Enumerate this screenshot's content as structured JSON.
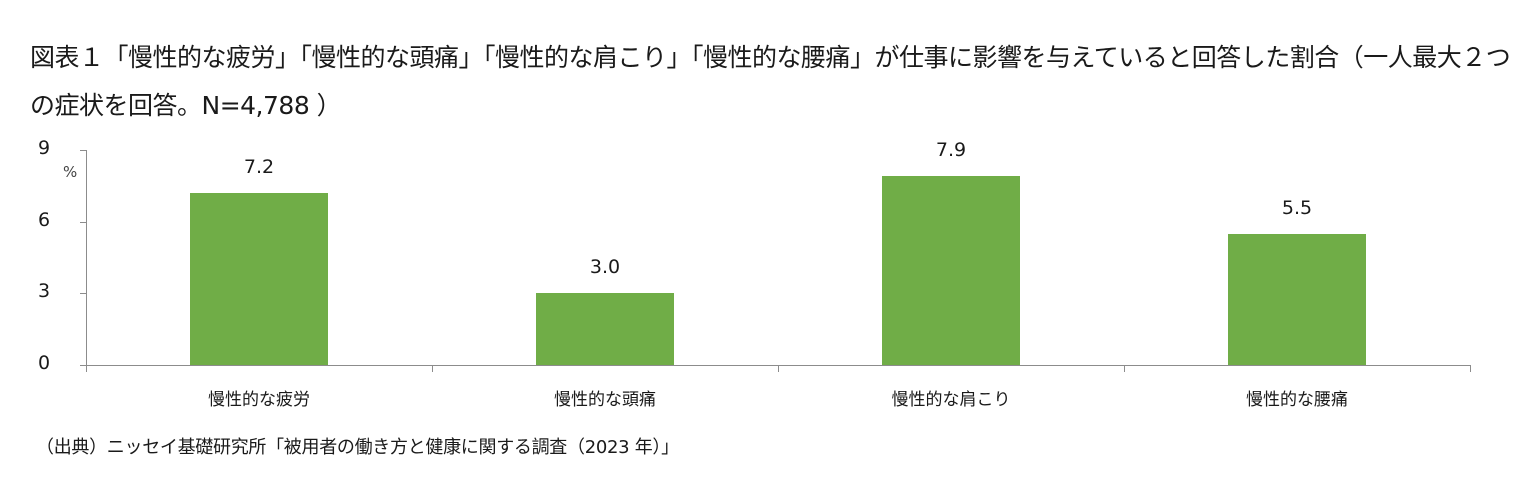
{
  "title": "図表１「慢性的な疲労」「慢性的な頭痛」「慢性的な肩こり」「慢性的な腰痛」が仕事に影響を与えていると回答した割合（一人最大２つの症状を回答。N=4,788 ）",
  "source": "（出典）ニッセイ基礎研究所「被用者の働き方と健康に関する調査（2023 年）」",
  "colors": {
    "bar": "#70AD47",
    "axis": "#8C8C8C",
    "text": "#1A1A1A"
  },
  "chart_data": {
    "type": "bar",
    "title": "図表１「慢性的な疲労」「慢性的な頭痛」「慢性的な肩こり」「慢性的な腰痛」が仕事に影響を与えていると回答した割合（一人最大２つの症状を回答。N=4,788 ）",
    "categories": [
      "慢性的な疲労",
      "慢性的な頭痛",
      "慢性的な肩こり",
      "慢性的な腰痛"
    ],
    "values": [
      7.2,
      3.0,
      7.9,
      5.5
    ],
    "value_labels": [
      "7.2",
      "3.0",
      "7.9",
      "5.5"
    ],
    "xlabel": "",
    "ylabel": "%",
    "ylim": [
      0,
      9
    ],
    "yticks": [
      "0",
      "3",
      "6",
      "9"
    ],
    "grid": false,
    "legend": null,
    "bar_color": "#70AD47",
    "annotation": "（出典）ニッセイ基礎研究所「被用者の働き方と健康に関する調査（2023 年）」"
  }
}
